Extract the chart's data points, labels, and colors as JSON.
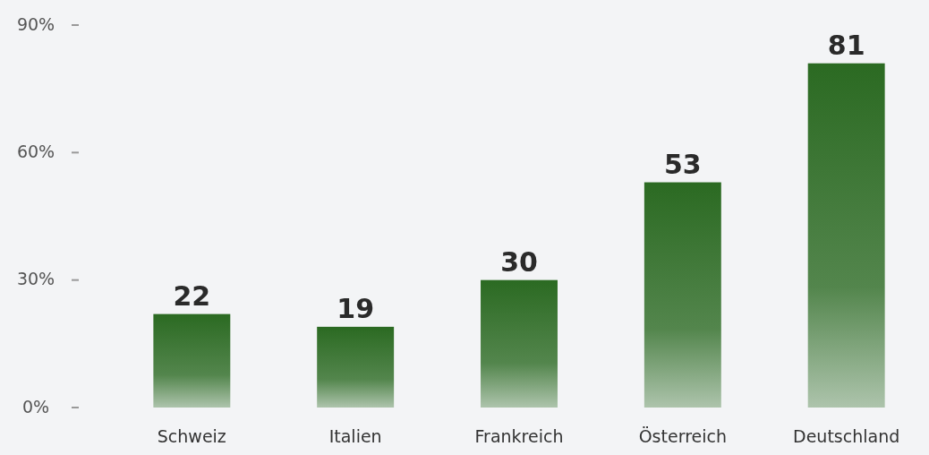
{
  "chart_data": {
    "type": "bar",
    "categories": [
      "Schweiz",
      "Italien",
      "Frankreich",
      "Österreich",
      "Deutschland"
    ],
    "values": [
      22,
      19,
      30,
      53,
      81
    ],
    "color": "#2b6a22",
    "ylim": [
      0,
      90
    ],
    "yticks": [
      {
        "value": 0,
        "label": "0%"
      },
      {
        "value": 30,
        "label": "30%"
      },
      {
        "value": 60,
        "label": "60%"
      },
      {
        "value": 90,
        "label": "90%"
      }
    ],
    "data_labels": true
  }
}
